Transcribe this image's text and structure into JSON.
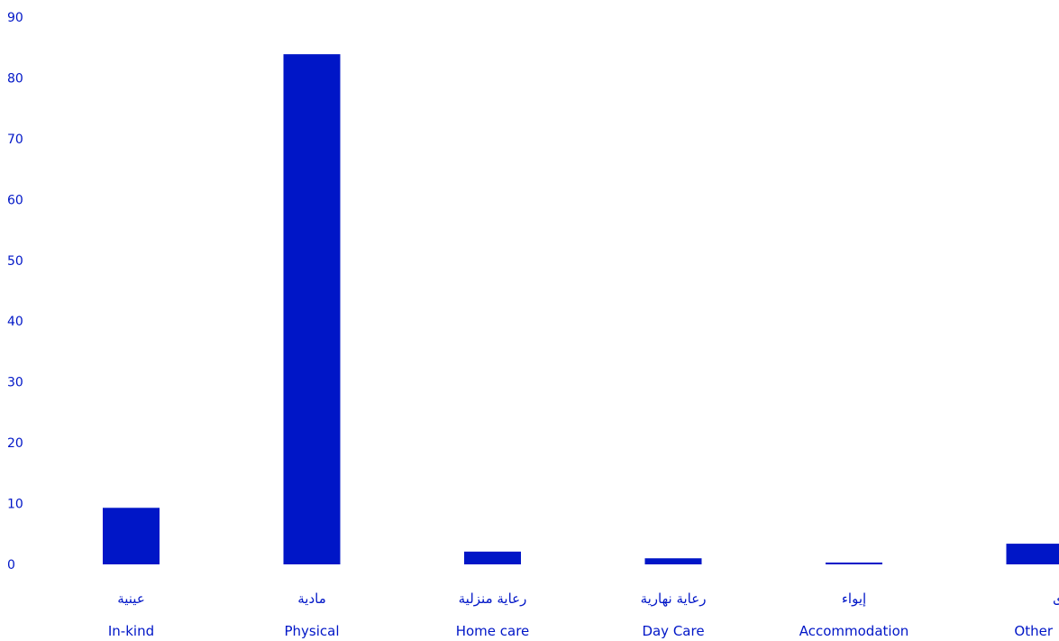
{
  "chart_data": {
    "type": "bar",
    "title": "",
    "xlabel": "",
    "ylabel": "",
    "ylim": [
      0,
      90
    ],
    "yticks": [
      0,
      10,
      20,
      30,
      40,
      50,
      60,
      70,
      80,
      90
    ],
    "grid": false,
    "legend": "none",
    "categories": [
      {
        "ar": "عينية",
        "en": "In-kind"
      },
      {
        "ar": "مادية",
        "en": "Physical"
      },
      {
        "ar": "رعاية منزلية",
        "en": "Home care"
      },
      {
        "ar": "رعاية نهارية",
        "en": "Day Care"
      },
      {
        "ar": "إيواء",
        "en": "Accommodation"
      },
      {
        "ar": "أخرى",
        "en": "Other"
      }
    ],
    "values": [
      9.3,
      83.9,
      2.1,
      1.0,
      0.3,
      3.4
    ],
    "colors": {
      "bar": "#0016c7",
      "text": "#0016c7"
    }
  }
}
